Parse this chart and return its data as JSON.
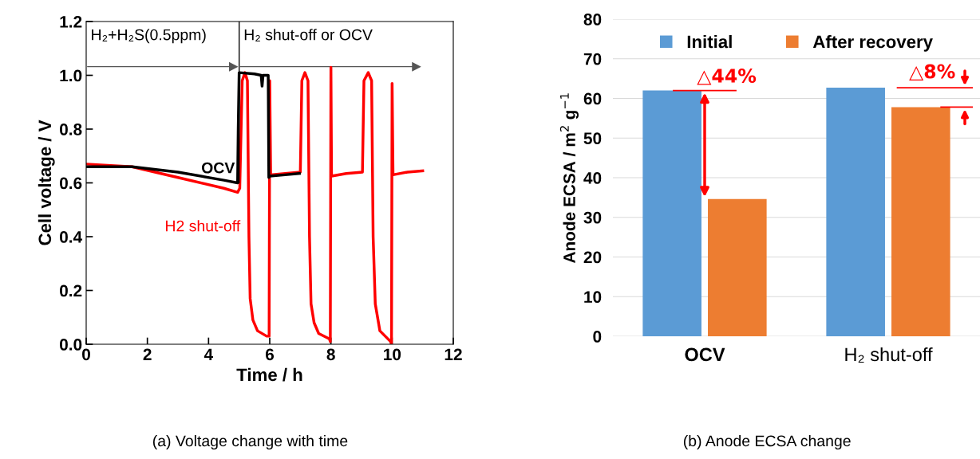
{
  "chart_data": [
    {
      "type": "line",
      "title": "(a) Voltage change with time",
      "xlabel": "Time / h",
      "ylabel": "Cell voltage / V",
      "xlim": [
        0,
        12
      ],
      "xticks": [
        0,
        2,
        4,
        6,
        8,
        10,
        12
      ],
      "ylim": [
        0,
        1.2
      ],
      "yticks": [
        {
          "value": 0,
          "label": "0.0"
        },
        0.2,
        0.4,
        0.6,
        0.8,
        {
          "value": 1,
          "label": "1.0"
        },
        1.2
      ],
      "marker": "none",
      "line_style": "solid",
      "grid": false,
      "legend": false,
      "annotations": [
        "H₂+H₂S(0.5ppm)",
        "H₂ shut-off or OCV"
      ],
      "ref_lines": [
        {
          "axis": "x",
          "value": 5,
          "label": null,
          "color": "#000000"
        }
      ],
      "series": [
        {
          "name": "OCV",
          "color": "#000000",
          "x": [
            0,
            1.5,
            3,
            4.5,
            4.95,
            4.97,
            5.0,
            5.5,
            5.72,
            5.75,
            5.78,
            5.95,
            5.97,
            6.0,
            6.5,
            6.97
          ],
          "values": [
            0.66,
            0.66,
            0.64,
            0.61,
            0.6,
            0.8,
            1.01,
            1.005,
            1.0,
            0.96,
            1.0,
            1.0,
            0.62,
            0.625,
            0.63,
            0.635
          ]
        },
        {
          "name": "H2 shut-off",
          "color": "#ff0000",
          "x": [
            0,
            1.5,
            3,
            4.5,
            4.95,
            5.02,
            5.1,
            5.19,
            5.27,
            5.32,
            5.36,
            5.45,
            5.6,
            5.9,
            5.98,
            6.0,
            6.03,
            6.5,
            7.0,
            7.05,
            7.15,
            7.25,
            7.3,
            7.35,
            7.45,
            7.6,
            7.95,
            7.98,
            8.0,
            8.02,
            8.5,
            9.03,
            9.08,
            9.22,
            9.33,
            9.38,
            9.45,
            9.6,
            9.95,
            9.98,
            10.0,
            10.03,
            10.5,
            11.0
          ],
          "values": [
            0.67,
            0.66,
            0.62,
            0.58,
            0.565,
            0.58,
            0.98,
            1.01,
            0.98,
            0.4,
            0.17,
            0.09,
            0.05,
            0.03,
            0.03,
            0.98,
            0.63,
            0.635,
            0.64,
            0.98,
            1.01,
            0.98,
            0.4,
            0.15,
            0.08,
            0.04,
            0.02,
            0.01,
            1.03,
            0.625,
            0.635,
            0.64,
            0.98,
            1.01,
            0.98,
            0.4,
            0.15,
            0.05,
            0.01,
            0.0,
            0.97,
            0.63,
            0.64,
            0.645
          ]
        }
      ]
    },
    {
      "type": "bar",
      "title": "(b) Anode ECSA change",
      "ylabel": "Anode ECSA / m$^{2}$ g$^{−1}$",
      "categories": [
        "OCV",
        "H₂ shut-off"
      ],
      "ylim": [
        0,
        80
      ],
      "yticks": [
        0,
        10,
        20,
        30,
        40,
        50,
        60,
        70,
        80
      ],
      "grid": "y",
      "legend": "top",
      "annotations": [
        {
          "text": "△44%",
          "x": "OCV",
          "y": 62
        },
        "△8%"
      ],
      "series": [
        {
          "name": "Initial",
          "color": "#5b9bd5",
          "values": [
            62,
            62.7
          ]
        },
        {
          "name": "After recovery",
          "color": "#ed7d31",
          "values": [
            34.6,
            57.8
          ]
        }
      ]
    }
  ]
}
